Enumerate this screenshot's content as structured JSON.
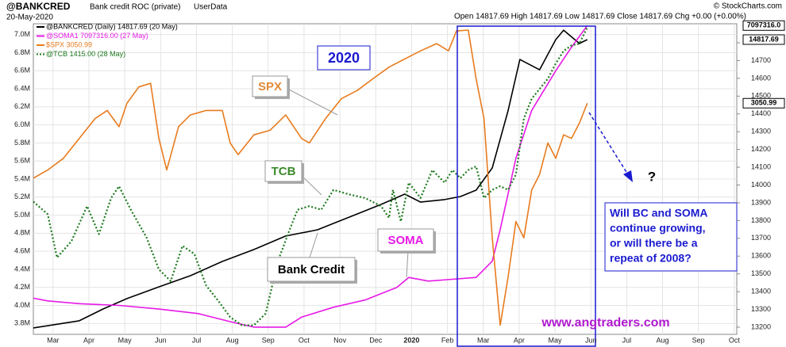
{
  "chart_data": {
    "type": "line",
    "title": "@BANKCRED",
    "subtitle": "Bank credit ROC (private)",
    "source": "UserData",
    "date": "20-May-2020",
    "ohlc": "Open 14817.69  High 14817.69  Low 14817.69  Close 14817.69  Chg +0.00 (+0.00%)",
    "credit": "© StockCharts.com",
    "xlim": [
      2.45,
      22.07
    ],
    "xticks": [
      {
        "value": 3,
        "label": "Mar"
      },
      {
        "value": 4,
        "label": "Apr"
      },
      {
        "value": 5,
        "label": "May"
      },
      {
        "value": 6,
        "label": "Jun"
      },
      {
        "value": 7,
        "label": "Jul"
      },
      {
        "value": 8,
        "label": "Aug"
      },
      {
        "value": 9,
        "label": "Sep"
      },
      {
        "value": 10,
        "label": "Oct"
      },
      {
        "value": 11,
        "label": "Nov"
      },
      {
        "value": 12,
        "label": "Dec"
      },
      {
        "value": 13,
        "label": "2020"
      },
      {
        "value": 14,
        "label": "Feb"
      },
      {
        "value": 15,
        "label": "Mar"
      },
      {
        "value": 16,
        "label": "Apr"
      },
      {
        "value": 17,
        "label": "May"
      },
      {
        "value": 18,
        "label": "Jun"
      },
      {
        "value": 19,
        "label": "Jul"
      },
      {
        "value": 20,
        "label": "Aug"
      },
      {
        "value": 21,
        "label": "Sep"
      },
      {
        "value": 22,
        "label": "Oct"
      }
    ],
    "ylim": [
      3.68,
      7.12
    ],
    "yticks": [
      {
        "value": 3.8,
        "label": "3.8M"
      },
      {
        "value": 4.0,
        "label": "4.0M"
      },
      {
        "value": 4.2,
        "label": "4.2M"
      },
      {
        "value": 4.4,
        "label": "4.4M"
      },
      {
        "value": 4.6,
        "label": "4.6M"
      },
      {
        "value": 4.8,
        "label": "4.8M"
      },
      {
        "value": 5.0,
        "label": "5.0M"
      },
      {
        "value": 5.2,
        "label": "5.2M"
      },
      {
        "value": 5.4,
        "label": "5.4M"
      },
      {
        "value": 5.6,
        "label": "5.6M"
      },
      {
        "value": 5.8,
        "label": "5.8M"
      },
      {
        "value": 6.0,
        "label": "6.0M"
      },
      {
        "value": 6.2,
        "label": "6.2M"
      },
      {
        "value": 6.4,
        "label": "6.4M"
      },
      {
        "value": 6.6,
        "label": "6.6M"
      },
      {
        "value": 6.8,
        "label": "6.8M"
      },
      {
        "value": 7.0,
        "label": "7.0M"
      }
    ],
    "y2lim": [
      13160,
      14907
    ],
    "y2ticks": [
      13200,
      13300,
      13400,
      13500,
      13600,
      13700,
      13800,
      13900,
      14000,
      14100,
      14200,
      14300,
      14400,
      14500,
      14600,
      14700,
      14800
    ],
    "grid": true,
    "series": [
      {
        "name": "@BANKCRED (Daily) 14817.69 (20 May)",
        "color": "#000000",
        "axis": "y2",
        "style": "solid",
        "end_label": "14817.69",
        "x": [
          2.45,
          3.73,
          4.4,
          5.06,
          5.95,
          6.83,
          7.72,
          8.6,
          9.49,
          10.37,
          10.82,
          11.48,
          12.15,
          12.81,
          13.25,
          13.92,
          14.36,
          14.8,
          15.25,
          15.69,
          16.02,
          16.57,
          17.02,
          17.24,
          17.68,
          17.9
        ],
        "values": [
          13196,
          13236,
          13303,
          13361,
          13427,
          13490,
          13570,
          13637,
          13713,
          13748,
          13784,
          13837,
          13891,
          13949,
          13904,
          13918,
          13935,
          13971,
          14096,
          14417,
          14706,
          14648,
          14818,
          14871,
          14796,
          14818
        ]
      },
      {
        "name": "@SOMA1 7097316.00 (27 May)",
        "color": "#e619e6",
        "axis": "y",
        "style": "solid",
        "end_label": "7097316.0",
        "x": [
          2.45,
          2.85,
          3.73,
          4.84,
          5.95,
          7.05,
          7.94,
          8.6,
          9.49,
          9.93,
          10.82,
          11.7,
          12.59,
          12.92,
          13.47,
          14.14,
          14.8,
          15.25,
          15.47,
          15.91,
          16.35,
          17.02,
          17.46,
          17.9
        ],
        "values": [
          4.08,
          4.05,
          4.02,
          4.0,
          3.96,
          3.91,
          3.82,
          3.76,
          3.76,
          3.87,
          3.98,
          4.06,
          4.2,
          4.31,
          4.27,
          4.29,
          4.31,
          4.49,
          4.84,
          5.63,
          6.16,
          6.6,
          6.86,
          7.1
        ]
      },
      {
        "name": "$SPX 3050.99",
        "color": "#e87b1e",
        "axis": "y",
        "style": "solid",
        "end_label": "3050.99",
        "x": [
          2.45,
          2.85,
          3.29,
          3.73,
          4.17,
          4.51,
          4.84,
          5.06,
          5.39,
          5.72,
          5.95,
          6.17,
          6.5,
          6.83,
          7.27,
          7.72,
          7.94,
          8.16,
          8.6,
          9.05,
          9.49,
          9.93,
          10.15,
          10.6,
          11.04,
          11.48,
          11.92,
          12.37,
          12.81,
          13.25,
          13.7,
          14.03,
          14.25,
          14.58,
          14.8,
          15.02,
          15.25,
          15.47,
          15.69,
          15.91,
          16.13,
          16.35,
          16.57,
          16.8,
          17.02,
          17.24,
          17.46,
          17.68,
          17.9
        ],
        "values": [
          5.41,
          5.5,
          5.63,
          5.85,
          6.07,
          6.16,
          5.98,
          6.24,
          6.42,
          6.46,
          5.85,
          5.5,
          5.98,
          6.11,
          6.16,
          6.16,
          5.8,
          5.67,
          5.89,
          5.94,
          6.11,
          5.85,
          5.8,
          6.07,
          6.29,
          6.38,
          6.51,
          6.64,
          6.73,
          6.82,
          6.9,
          6.82,
          7.04,
          7.05,
          6.51,
          6.07,
          4.75,
          3.78,
          4.31,
          4.93,
          4.75,
          5.28,
          5.45,
          5.8,
          5.63,
          5.89,
          5.85,
          6.02,
          6.24
        ]
      },
      {
        "name": "@TCB 1415.00 (28 May)",
        "color": "#1e7a1e",
        "axis": "y",
        "style": "dotted",
        "x": [
          2.45,
          2.85,
          3.11,
          3.51,
          3.95,
          4.28,
          4.62,
          4.84,
          5.17,
          5.61,
          5.95,
          6.28,
          6.61,
          6.94,
          7.27,
          7.61,
          7.94,
          8.27,
          8.6,
          8.93,
          9.27,
          9.6,
          9.82,
          10.15,
          10.48,
          10.82,
          11.26,
          11.7,
          12.15,
          12.37,
          12.48,
          12.7,
          12.92,
          13.25,
          13.58,
          13.92,
          14.14,
          14.36,
          14.58,
          14.8,
          15.02,
          15.25,
          15.47,
          15.69,
          15.91,
          16.13,
          16.35,
          16.8,
          17.02,
          17.24,
          17.46,
          17.68,
          17.9
        ],
        "values": [
          5.15,
          5.01,
          4.53,
          4.71,
          5.1,
          4.79,
          5.19,
          5.32,
          5.06,
          4.75,
          4.4,
          4.27,
          4.66,
          4.57,
          4.22,
          4.05,
          3.87,
          3.78,
          3.78,
          3.91,
          4.49,
          4.84,
          5.06,
          5.1,
          5.06,
          5.28,
          5.23,
          5.19,
          5.1,
          4.97,
          5.28,
          4.93,
          5.36,
          5.19,
          5.5,
          5.36,
          5.5,
          5.41,
          5.5,
          5.54,
          5.19,
          5.28,
          5.32,
          5.28,
          5.45,
          6.07,
          6.29,
          6.51,
          6.68,
          6.82,
          6.88,
          6.9,
          7.08
        ]
      }
    ],
    "annotations": {
      "year": "2020",
      "spx": "SPX",
      "tcb": "TCB",
      "soma": "SOMA",
      "bank_credit": "Bank Credit",
      "mark": "?",
      "question": [
        "Will BC and SOMA",
        "continue growing,",
        "or will there be a",
        "repeat of 2008?"
      ],
      "site": "www.angtraders.com"
    }
  }
}
